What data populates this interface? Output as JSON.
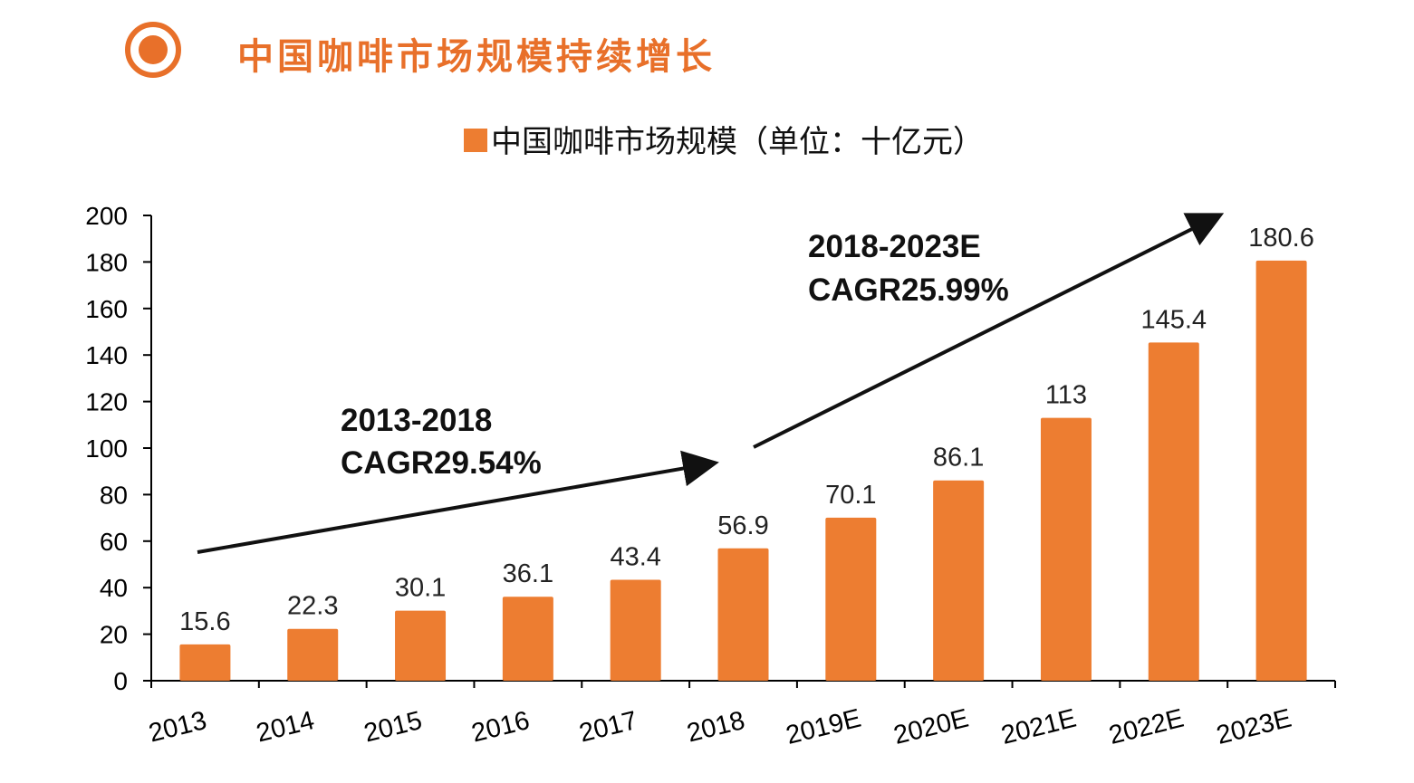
{
  "page": {
    "title": "中国咖啡市场规模持续增长"
  },
  "colors": {
    "accent": "#E8702A",
    "bar": "#ED7D31",
    "axis": "#000000"
  },
  "chart_data": {
    "type": "bar",
    "categories": [
      "2013",
      "2014",
      "2015",
      "2016",
      "2017",
      "2018",
      "2019E",
      "2020E",
      "2021E",
      "2022E",
      "2023E"
    ],
    "series": [
      {
        "name": "中国咖啡市场规模（单位：十亿元）",
        "values": [
          15.6,
          22.3,
          30.1,
          36.1,
          43.4,
          56.9,
          70.1,
          86.1,
          113,
          145.4,
          180.6
        ]
      }
    ],
    "data_labels": [
      "15.6",
      "22.3",
      "30.1",
      "36.1",
      "43.4",
      "56.9",
      "70.1",
      "86.1",
      "113",
      "145.4",
      "180.6"
    ],
    "ylim": [
      0,
      200
    ],
    "yticks": [
      0,
      20,
      40,
      60,
      80,
      100,
      120,
      140,
      160,
      180,
      200
    ],
    "legend_position": "top-center",
    "grid": false,
    "annotations": [
      {
        "line1": "2013-2018",
        "line2": "CAGR29.54%"
      },
      {
        "line1": "2018-2023E",
        "line2": "CAGR25.99%"
      }
    ]
  }
}
